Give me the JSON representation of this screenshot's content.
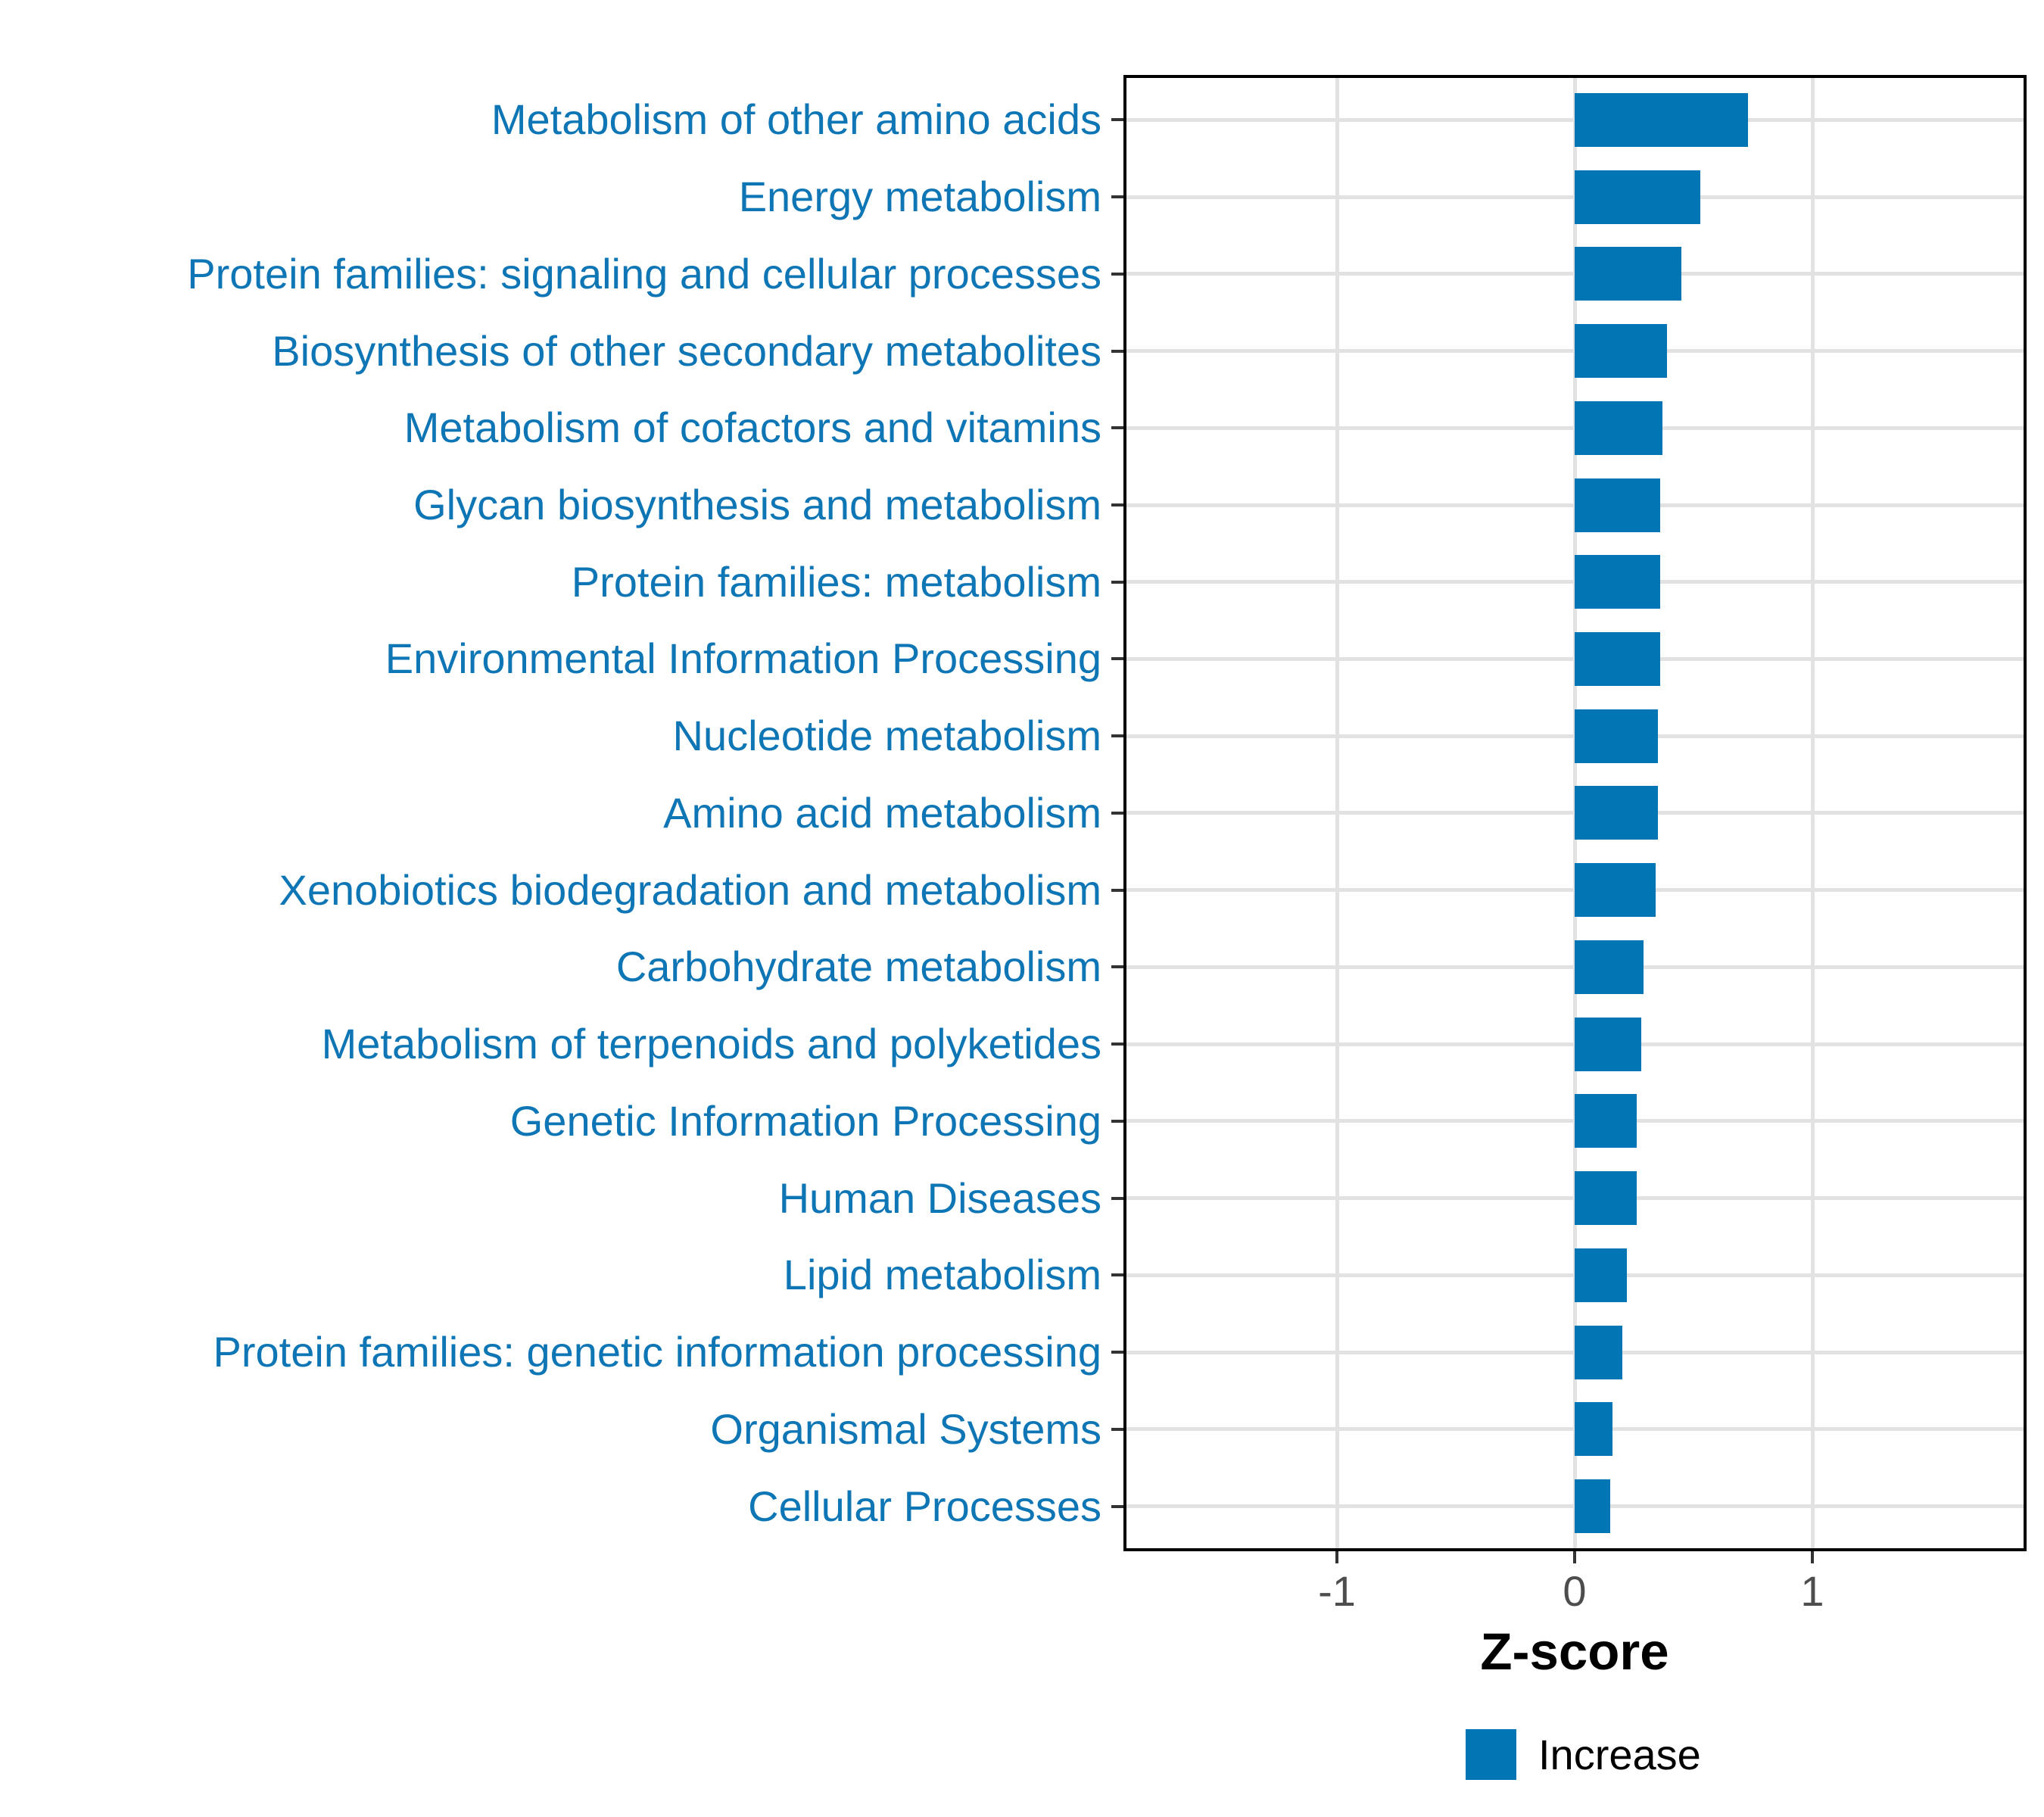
{
  "chart_data": {
    "type": "bar",
    "orientation": "horizontal",
    "title": "",
    "xlabel": "Z-score",
    "ylabel": "",
    "categories": [
      "Metabolism of other amino acids",
      "Energy metabolism",
      "Protein families: signaling and cellular processes",
      "Biosynthesis of other secondary metabolites",
      "Metabolism of cofactors and vitamins",
      "Glycan biosynthesis and metabolism",
      "Protein families: metabolism",
      "Environmental Information Processing",
      "Nucleotide metabolism",
      "Amino acid metabolism",
      "Xenobiotics biodegradation and metabolism",
      "Carbohydrate metabolism",
      "Metabolism of terpenoids and polyketides",
      "Genetic Information Processing",
      "Human Diseases",
      "Lipid metabolism",
      "Protein families: genetic information processing",
      "Organismal Systems",
      "Cellular Processes"
    ],
    "series": [
      {
        "name": "Increase",
        "values": [
          0.73,
          0.53,
          0.45,
          0.39,
          0.37,
          0.36,
          0.36,
          0.36,
          0.35,
          0.35,
          0.34,
          0.29,
          0.28,
          0.26,
          0.26,
          0.22,
          0.2,
          0.16,
          0.15
        ]
      }
    ],
    "x_ticks": [
      -1,
      0,
      1
    ],
    "x_tick_labels": [
      "-1",
      "0",
      "1"
    ],
    "xlim": [
      -1.98,
      1.9
    ],
    "grid": "major-only",
    "legend_position": "bottom-center",
    "legend": [
      {
        "label": "Increase",
        "color": "#0276b4"
      }
    ]
  },
  "colors": {
    "bar": "#0276b4",
    "category_label": "#0f76b5",
    "tick_label": "#4d4d4d",
    "gridline": "#e2e2e2",
    "panel_border": "#000000",
    "tick_mark": "#333333",
    "background": "#ffffff"
  }
}
